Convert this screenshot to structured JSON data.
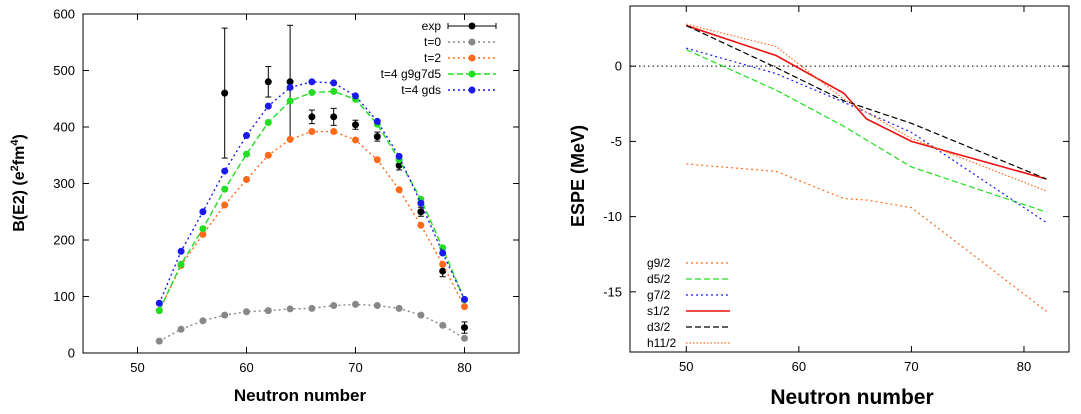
{
  "chart_data": [
    {
      "type": "line",
      "title": "",
      "xlabel": "Neutron number",
      "ylabel": "B(E2) (e²fm⁴)",
      "ylabel_parts": {
        "base": "B(E2) (e",
        "sup1": "2",
        "mid": "fm",
        "sup2": "4",
        "end": ")"
      },
      "xlim": [
        45,
        85
      ],
      "ylim": [
        0,
        600
      ],
      "xticks": [
        50,
        60,
        70,
        80
      ],
      "xtick_labels": [
        "50",
        "60",
        "70",
        "80"
      ],
      "yticks": [
        0,
        100,
        200,
        300,
        400,
        500,
        600
      ],
      "ytick_labels": [
        "0",
        "100",
        "200",
        "300",
        "400",
        "500",
        "600"
      ],
      "grid": false,
      "legend_position": "top-right",
      "series": [
        {
          "name": "exp",
          "color": "#000000",
          "style": "errorbar",
          "x": [
            58,
            62,
            64,
            66,
            68,
            70,
            72,
            74,
            76,
            78,
            80
          ],
          "y": [
            460,
            480,
            480,
            418,
            418,
            404,
            383,
            332,
            250,
            145,
            45
          ],
          "err": [
            115,
            27,
            100,
            12,
            15,
            8,
            8,
            8,
            8,
            10,
            10
          ]
        },
        {
          "name": "t=0",
          "color": "#888888",
          "style": "dotted",
          "x": [
            52,
            54,
            56,
            58,
            60,
            62,
            64,
            66,
            68,
            70,
            72,
            74,
            76,
            78,
            80
          ],
          "y": [
            21,
            42,
            57,
            67,
            73,
            75,
            78,
            79,
            84,
            86,
            84,
            79,
            67,
            49,
            26
          ]
        },
        {
          "name": "t=2",
          "color": "#ff6a1a",
          "style": "dotted",
          "x": [
            52,
            54,
            56,
            58,
            60,
            62,
            64,
            66,
            68,
            70,
            72,
            74,
            76,
            78,
            80
          ],
          "y": [
            75,
            155,
            210,
            262,
            307,
            350,
            378,
            392,
            392,
            377,
            342,
            289,
            226,
            157,
            82
          ]
        },
        {
          "name": "t=4 g9g7d5",
          "color": "#22dd22",
          "style": "dashed",
          "x": [
            52,
            54,
            56,
            58,
            60,
            62,
            64,
            66,
            68,
            70,
            72,
            74,
            76,
            78,
            80
          ],
          "y": [
            75,
            157,
            220,
            290,
            352,
            408,
            446,
            461,
            463,
            449,
            405,
            342,
            272,
            186,
            94
          ]
        },
        {
          "name": "t=4 gds",
          "color": "#1a1aee",
          "style": "dotted",
          "x": [
            52,
            54,
            56,
            58,
            60,
            62,
            64,
            66,
            68,
            70,
            72,
            74,
            76,
            78,
            80
          ],
          "y": [
            88,
            180,
            250,
            322,
            385,
            437,
            470,
            480,
            478,
            455,
            410,
            348,
            265,
            177,
            95
          ]
        }
      ]
    },
    {
      "type": "line",
      "title": "",
      "xlabel": "Neutron number",
      "ylabel": "ESPE (MeV)",
      "xlim": [
        45,
        84
      ],
      "ylim": [
        -19,
        4
      ],
      "xticks": [
        50,
        60,
        70,
        80
      ],
      "xtick_labels": [
        "50",
        "60",
        "70",
        "80"
      ],
      "yticks": [
        0,
        -5,
        -10,
        -15
      ],
      "ytick_labels": [
        "0",
        "-5",
        "-10",
        "-15"
      ],
      "zero_line": true,
      "grid": false,
      "legend_position": "bottom-left",
      "series": [
        {
          "name": "g9/2",
          "color": "#ff6a1a",
          "style": "dotted",
          "x": [
            50,
            58,
            64,
            66,
            70,
            82
          ],
          "y": [
            -6.5,
            -7.0,
            -8.8,
            -8.9,
            -9.4,
            -16.3
          ]
        },
        {
          "name": "d5/2",
          "color": "#22dd22",
          "style": "dashed",
          "x": [
            50,
            58,
            64,
            70,
            82
          ],
          "y": [
            1.1,
            -1.6,
            -4.0,
            -6.7,
            -9.7
          ]
        },
        {
          "name": "g7/2",
          "color": "#1a1aee",
          "style": "dotted",
          "x": [
            50,
            58,
            64,
            70,
            82
          ],
          "y": [
            1.2,
            -0.5,
            -2.4,
            -4.4,
            -10.4
          ]
        },
        {
          "name": "s1/2",
          "color": "#ee1111",
          "style": "solid",
          "x": [
            50,
            58,
            64,
            66,
            70,
            82
          ],
          "y": [
            2.7,
            0.7,
            -1.8,
            -3.5,
            -5.0,
            -7.5
          ]
        },
        {
          "name": "d3/2",
          "color": "#000000",
          "style": "dashed",
          "x": [
            50,
            58,
            64,
            70,
            82
          ],
          "y": [
            2.7,
            -0.1,
            -2.3,
            -3.8,
            -7.5
          ]
        },
        {
          "name": "h11/2",
          "color": "#ff6a1a",
          "style": "dotted-fine",
          "x": [
            50,
            58,
            64,
            70,
            82
          ],
          "y": [
            2.8,
            1.3,
            -2.2,
            -4.8,
            -8.3
          ]
        }
      ]
    }
  ]
}
